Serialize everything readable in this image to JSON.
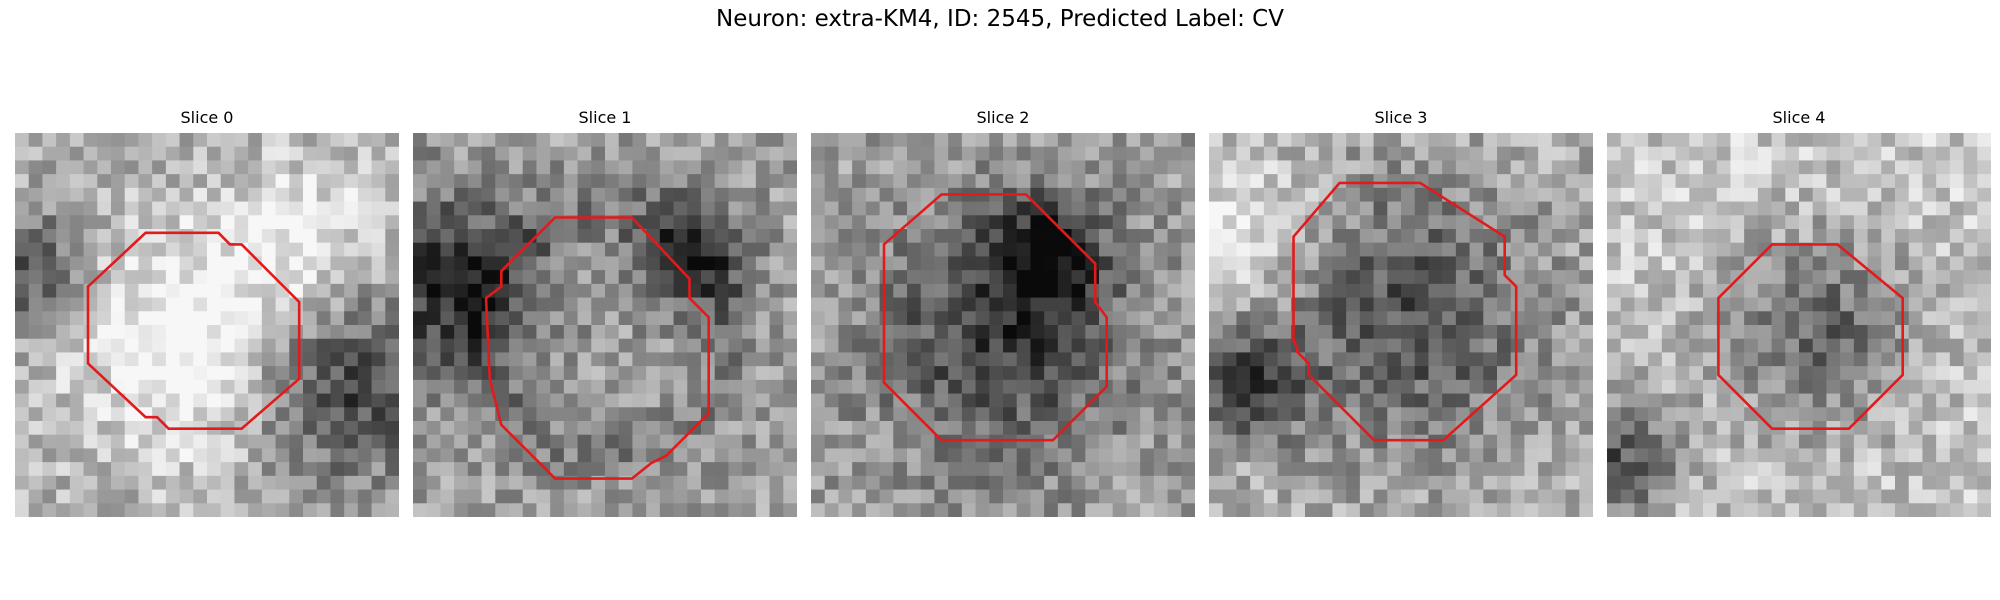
{
  "figure": {
    "title": "Neuron: extra-KM4, ID: 2545, Predicted Label: CV"
  },
  "panels": [
    {
      "title": "Slice 0"
    },
    {
      "title": "Slice 1"
    },
    {
      "title": "Slice 2"
    },
    {
      "title": "Slice 3"
    },
    {
      "title": "Slice 4"
    }
  ],
  "colors": {
    "contour": "#e31a1c",
    "background": "#ffffff"
  },
  "colormap": "grayscale"
}
